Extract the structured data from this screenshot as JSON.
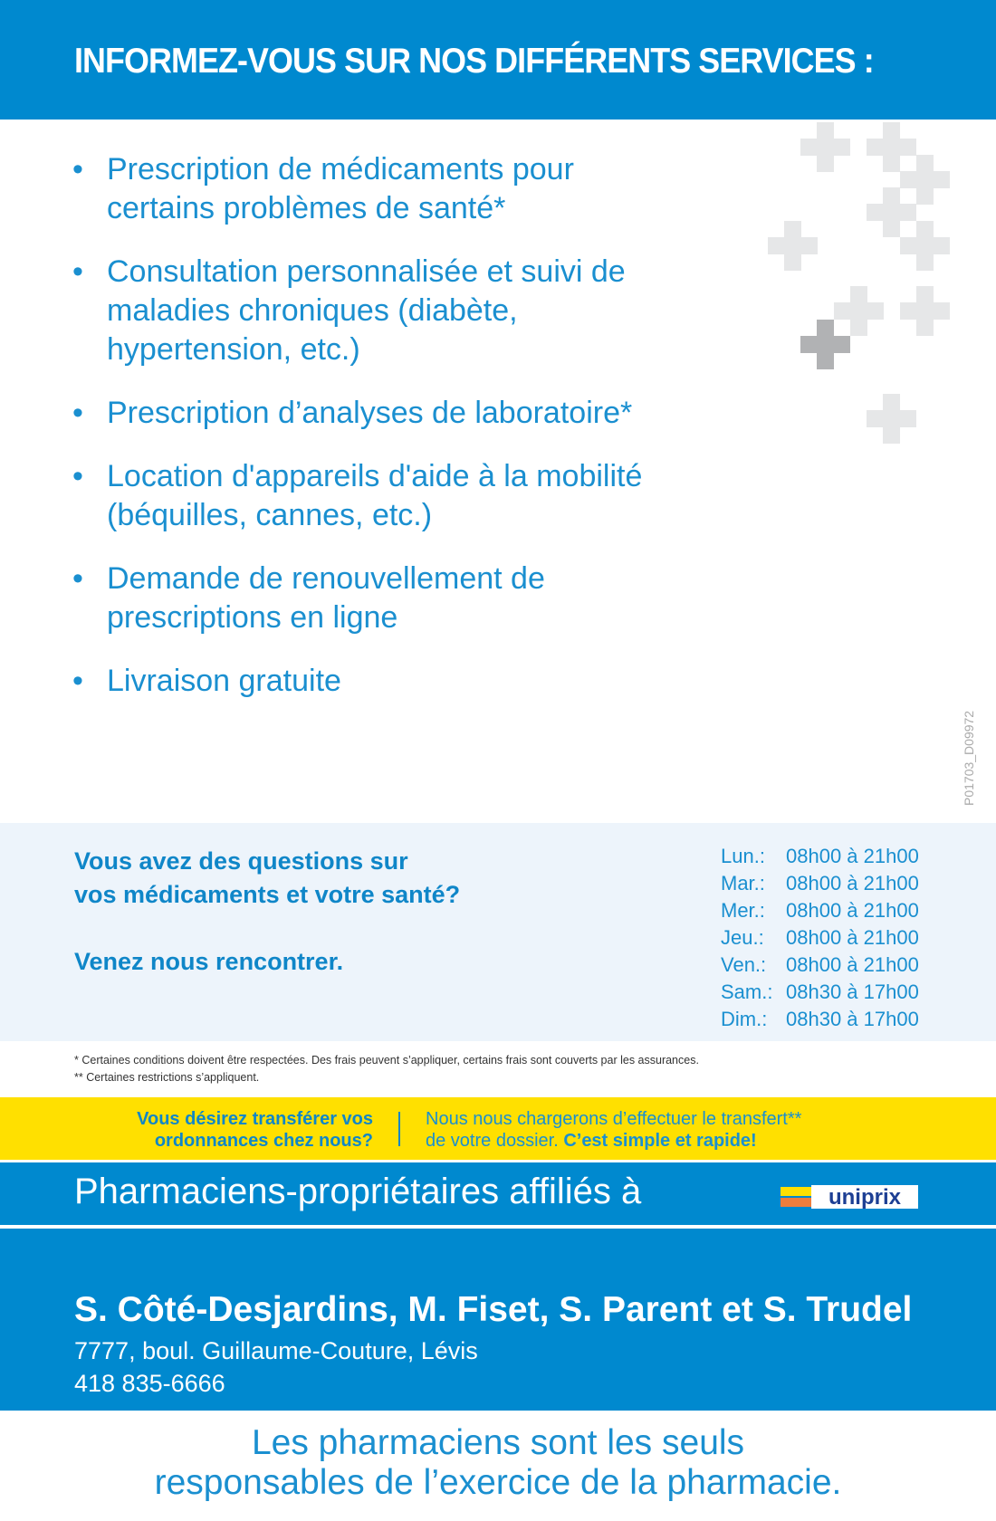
{
  "header": {
    "title": "INFORMEZ-VOUS SUR NOS DIFFÉRENTS SERVICES :"
  },
  "services": [
    "Prescription de médicaments pour certains problèmes de santé*",
    "Consultation personnalisée et suivi de maladies chroniques (diabète, hypertension, etc.)",
    "Prescription d’analyses de laboratoire*",
    "Location d'appareils d'aide à la mobilité (béquilles, cannes, etc.)",
    "Demande de renouvellement de prescriptions en ligne",
    "Livraison gratuite"
  ],
  "doc_code": "P01703_D09972",
  "info": {
    "question_line1": "Vous avez des questions sur",
    "question_line2": "vos médicaments et votre santé?",
    "invite": "Venez nous rencontrer.",
    "hours": [
      {
        "day": "Lun.:",
        "time": "08h00 à 21h00"
      },
      {
        "day": "Mar.:",
        "time": "08h00 à 21h00"
      },
      {
        "day": "Mer.:",
        "time": "08h00 à 21h00"
      },
      {
        "day": "Jeu.:",
        "time": "08h00 à 21h00"
      },
      {
        "day": "Ven.:",
        "time": "08h00 à 21h00"
      },
      {
        "day": "Sam.:",
        "time": "08h30 à 17h00"
      },
      {
        "day": "Dim.:",
        "time": "08h30 à 17h00"
      }
    ]
  },
  "notes": {
    "n1": "* Certaines conditions doivent être respectées. Des frais peuvent s’appliquer, certains frais sont couverts par les assurances.",
    "n2": "** Certaines restrictions s’appliquent."
  },
  "transfer": {
    "left1": "Vous désirez transférer vos",
    "left2": "ordonnances chez nous?",
    "right1": "Nous nous chargerons d’effectuer le transfert**",
    "right2": "de votre dossier. ",
    "right2_bold": "C’est simple et rapide!"
  },
  "affiliation": {
    "text": "Pharmaciens-propriétaires affiliés à",
    "logo": "uniprix"
  },
  "owners": {
    "names": "S. Côté-Desjardins, M. Fiset, S. Parent et S. Trudel",
    "address": "7777, boul. Guillaume-Couture, Lévis",
    "phone": "418 835-6666"
  },
  "footer": {
    "line1": "Les pharmaciens sont les seuls",
    "line2": "responsables de l’exercice de la pharmacie."
  },
  "colors": {
    "brand_blue": "#0089cf",
    "text_blue": "#1a8fd0",
    "yellow": "#ffe000",
    "light_bg": "#edf4fb",
    "cross_light": "#e6e7e8",
    "cross_dark": "#b1b2b4"
  }
}
